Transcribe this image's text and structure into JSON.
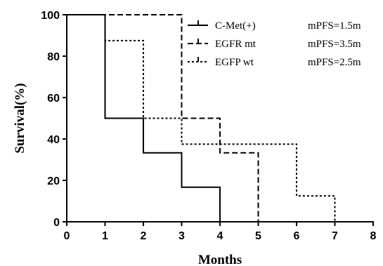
{
  "chart_data": {
    "type": "line",
    "xlabel": "Months",
    "ylabel": "Survival(%)",
    "xlim": [
      0,
      8
    ],
    "ylim": [
      0,
      100
    ],
    "x_ticks": [
      "0",
      "1",
      "2",
      "3",
      "4",
      "5",
      "6",
      "7",
      "8"
    ],
    "y_ticks": [
      "0",
      "20",
      "40",
      "60",
      "80",
      "100"
    ],
    "grid": false,
    "legend_position": "top-right",
    "series": [
      {
        "name": "C-Met(+)",
        "annotation": "mPFS=1.5m",
        "line_style": "solid",
        "points": [
          [
            0,
            100
          ],
          [
            1,
            100
          ],
          [
            1,
            50
          ],
          [
            2,
            50
          ],
          [
            2,
            33.3
          ],
          [
            3,
            33.3
          ],
          [
            3,
            16.7
          ],
          [
            4,
            16.7
          ],
          [
            4,
            0
          ]
        ]
      },
      {
        "name": "EGFR mt",
        "annotation": "mPFS=3.5m",
        "line_style": "dashed",
        "points": [
          [
            0,
            100
          ],
          [
            3,
            100
          ],
          [
            3,
            50
          ],
          [
            4,
            50
          ],
          [
            4,
            33.3
          ],
          [
            5,
            33.3
          ],
          [
            5,
            0
          ]
        ]
      },
      {
        "name": "EGFP wt",
        "annotation": "mPFS=2.5m",
        "line_style": "dotted",
        "points": [
          [
            0,
            100
          ],
          [
            1,
            100
          ],
          [
            1,
            87.5
          ],
          [
            2,
            87.5
          ],
          [
            2,
            50
          ],
          [
            3,
            50
          ],
          [
            3,
            37.5
          ],
          [
            6,
            37.5
          ],
          [
            6,
            12.5
          ],
          [
            7,
            12.5
          ],
          [
            7,
            0
          ]
        ]
      }
    ]
  }
}
